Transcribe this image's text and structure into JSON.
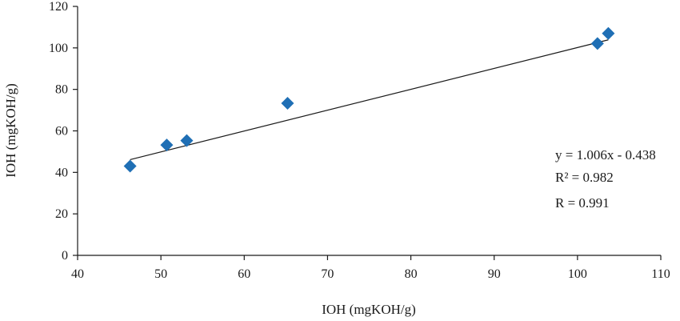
{
  "chart_data": {
    "type": "scatter",
    "xlabel": "IOH (mgKOH/g)",
    "ylabel": "IOH (mgKOH/g)",
    "xlim": [
      40,
      110
    ],
    "ylim": [
      0,
      120
    ],
    "x_ticks": [
      40,
      50,
      60,
      70,
      80,
      90,
      100,
      110
    ],
    "y_ticks": [
      0,
      20,
      40,
      60,
      80,
      100,
      120
    ],
    "grid": false,
    "marker": "diamond",
    "marker_color": "#1f6fb5",
    "points": [
      {
        "x": 46.3,
        "y": 43.0
      },
      {
        "x": 50.7,
        "y": 53.2
      },
      {
        "x": 53.1,
        "y": 55.3
      },
      {
        "x": 65.2,
        "y": 73.3
      },
      {
        "x": 102.4,
        "y": 102.1
      },
      {
        "x": 103.7,
        "y": 107.0
      }
    ],
    "trendline": {
      "slope": 1.006,
      "intercept": -0.438,
      "x_range": [
        46.3,
        103.7
      ]
    },
    "annotations": [
      {
        "text": "y = 1.006x - 0.438"
      },
      {
        "text": "R² = 0.982"
      },
      {
        "text": "R = 0.991"
      }
    ]
  }
}
